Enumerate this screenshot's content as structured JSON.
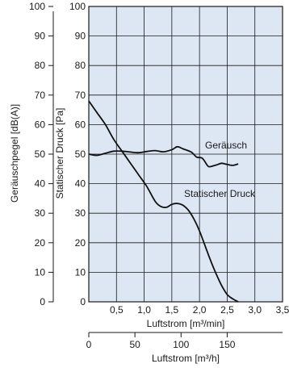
{
  "chart_data": {
    "type": "line",
    "title": "",
    "left_axis": {
      "label": "Geräuschpegel [dB(A)]",
      "range": [
        0,
        100
      ],
      "ticks": [
        "0",
        "10",
        "20",
        "30",
        "40",
        "50",
        "60",
        "70",
        "80",
        "90",
        "100"
      ]
    },
    "right_axis": {
      "label": "Statischer Druck [Pa]",
      "range": [
        0,
        100
      ],
      "ticks": [
        "0",
        "10",
        "20",
        "30",
        "40",
        "50",
        "60",
        "70",
        "80",
        "90",
        "100"
      ]
    },
    "x_axis_primary": {
      "label": "Luftstrom [m³/min]",
      "range": [
        0,
        3.5
      ],
      "ticks": [
        "0,5",
        "1,0",
        "1,5",
        "2,0",
        "2,5",
        "3,0",
        "3,5"
      ]
    },
    "x_axis_secondary": {
      "label": "Luftstrom [m³/h]",
      "range": [
        0,
        210
      ],
      "ticks": [
        "0",
        "50",
        "100",
        "150"
      ]
    },
    "grid": true,
    "colors": {
      "grid_background": "#dde6f3",
      "grid_lines": "#1a1a1a",
      "curve": "#111111"
    },
    "series": [
      {
        "name": "Geräusch",
        "x": [
          0.0,
          0.15,
          0.3,
          0.45,
          0.6,
          0.75,
          0.9,
          1.05,
          1.2,
          1.35,
          1.5,
          1.6,
          1.7,
          1.85,
          1.95,
          2.05,
          2.15,
          2.2,
          2.3,
          2.4,
          2.5,
          2.6,
          2.7
        ],
        "y": [
          50.0,
          49.6,
          50.3,
          51.0,
          51.0,
          50.7,
          50.5,
          50.9,
          51.2,
          50.8,
          51.5,
          52.5,
          51.8,
          50.7,
          49.0,
          48.6,
          46.0,
          45.8,
          46.3,
          46.9,
          46.5,
          46.2,
          46.7
        ]
      },
      {
        "name": "Statischer Druck",
        "x": [
          0.0,
          0.15,
          0.3,
          0.45,
          0.6,
          0.75,
          0.9,
          1.05,
          1.2,
          1.3,
          1.4,
          1.5,
          1.6,
          1.7,
          1.8,
          1.9,
          2.0,
          2.1,
          2.2,
          2.3,
          2.4,
          2.5,
          2.6,
          2.7
        ],
        "y": [
          68.0,
          64.0,
          60.0,
          55.0,
          51.0,
          47.0,
          43.0,
          39.0,
          34.0,
          32.3,
          32.0,
          33.0,
          33.3,
          32.7,
          31.0,
          28.0,
          24.0,
          19.0,
          14.0,
          9.5,
          5.5,
          2.5,
          1.0,
          0.0
        ]
      }
    ]
  }
}
